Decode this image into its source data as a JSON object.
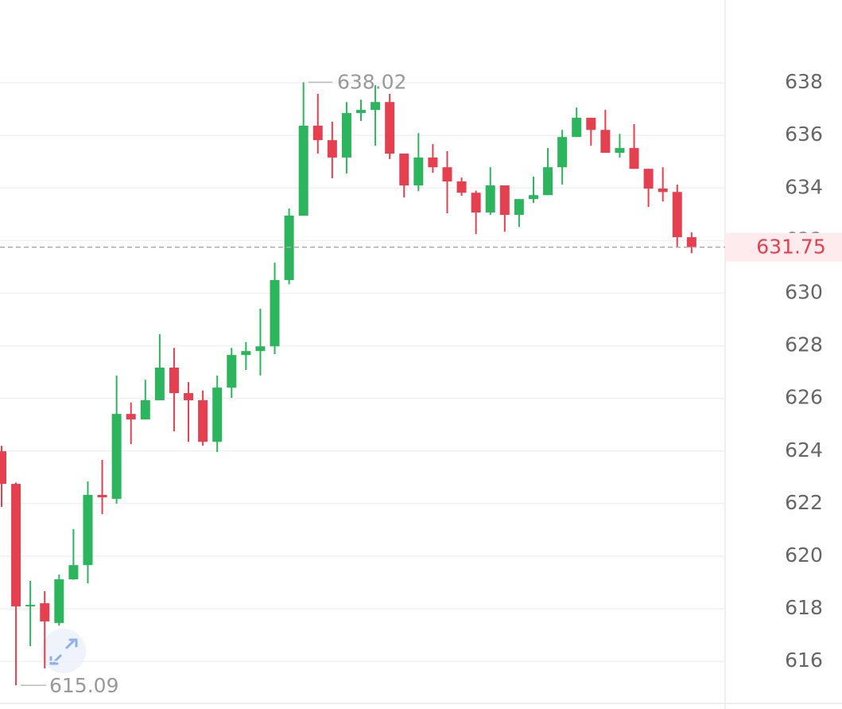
{
  "chart_data": {
    "type": "candlestick",
    "up_color": "#2db55d",
    "down_color": "#e5404f",
    "ylim": [
      614.37,
      641.15
    ],
    "yticks": [
      616,
      618,
      620,
      622,
      624,
      626,
      628,
      630,
      632,
      634,
      636,
      638
    ],
    "grid": true,
    "open": [
      623.99,
      622.75,
      618.1,
      618.21,
      617.46,
      619.12,
      619.66,
      622.33,
      622.18,
      625.41,
      625.2,
      625.93,
      627.17,
      626.2,
      625.93,
      624.35,
      626.41,
      627.65,
      627.8,
      627.98,
      630.5,
      632.95,
      636.37,
      635.82,
      635.16,
      636.85,
      636.97,
      637.27,
      635.31,
      634.1,
      635.16,
      634.79,
      634.25,
      633.82,
      633.07,
      634.1,
      632.98,
      633.58,
      633.73,
      634.79,
      635.94,
      636.67,
      636.21,
      635.34,
      635.52,
      634.73,
      633.98,
      633.85,
      632.13
    ],
    "high": [
      624.2,
      622.8,
      619.06,
      618.67,
      619.3,
      621.03,
      622.84,
      623.66,
      626.87,
      625.84,
      626.71,
      628.44,
      627.92,
      626.62,
      626.3,
      626.87,
      627.92,
      628.14,
      629.41,
      631.16,
      633.22,
      638.02,
      637.58,
      636.52,
      637.27,
      637.36,
      637.91,
      637.58,
      635.31,
      636.09,
      635.67,
      635.4,
      634.4,
      633.9,
      634.79,
      634.1,
      633.58,
      634.43,
      635.52,
      636.21,
      637.06,
      636.67,
      636.97,
      636.06,
      636.43,
      634.73,
      634.79,
      634.13,
      632.31
    ],
    "low": [
      621.87,
      615.09,
      616.58,
      615.73,
      617.36,
      619.1,
      618.97,
      621.6,
      622.0,
      624.26,
      625.2,
      625.93,
      624.75,
      624.35,
      624.2,
      623.96,
      626.02,
      627.08,
      626.87,
      627.68,
      630.34,
      632.95,
      635.31,
      634.37,
      634.55,
      636.55,
      635.61,
      635.1,
      633.64,
      633.88,
      634.58,
      633.04,
      633.7,
      632.25,
      632.98,
      632.34,
      632.52,
      633.43,
      633.73,
      634.13,
      635.94,
      635.61,
      635.34,
      635.16,
      634.73,
      633.28,
      633.49,
      631.77,
      631.52
    ],
    "close": [
      622.75,
      618.09,
      618.15,
      617.52,
      619.12,
      619.66,
      622.33,
      622.24,
      625.41,
      625.2,
      625.93,
      627.17,
      626.2,
      625.93,
      624.35,
      626.41,
      627.65,
      627.8,
      627.98,
      630.5,
      632.95,
      636.37,
      635.82,
      635.16,
      636.85,
      636.97,
      637.27,
      635.31,
      634.1,
      635.16,
      634.79,
      634.25,
      633.82,
      633.07,
      634.1,
      632.98,
      633.58,
      633.73,
      634.79,
      635.94,
      636.67,
      636.21,
      635.34,
      635.52,
      634.73,
      633.98,
      633.85,
      632.13,
      631.75
    ],
    "high_marker": 638.02,
    "low_marker": 615.09,
    "last_price": 631.75
  }
}
